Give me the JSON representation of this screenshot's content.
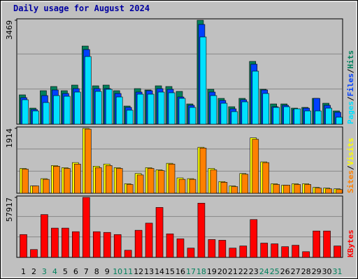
{
  "chart_data": [
    {
      "type": "bar",
      "title": "Daily usage for August 2024",
      "ylim": [
        0,
        3469
      ],
      "yticks": [
        3469
      ],
      "legend_separator": "/",
      "series": [
        {
          "name": "Hits",
          "color": "#00805c",
          "values": [
            978,
            535,
            1117,
            1257,
            1117,
            1304,
            2607,
            1280,
            1304,
            1117,
            605,
            1187,
            1141,
            1280,
            1257,
            1094,
            675,
            3469,
            1164,
            861,
            582,
            861,
            2095,
            1164,
            675,
            675,
            535,
            559,
            861,
            698,
            442
          ]
        },
        {
          "name": "Files",
          "color": "#0040ff",
          "values": [
            885,
            489,
            954,
            1141,
            1024,
            1187,
            2491,
            1187,
            1187,
            1024,
            559,
            1071,
            1117,
            1187,
            1164,
            908,
            629,
            3329,
            1071,
            792,
            512,
            815,
            2002,
            1141,
            582,
            629,
            489,
            535,
            861,
            629,
            396
          ]
        },
        {
          "name": "Pages",
          "color": "#00e0ff",
          "values": [
            815,
            442,
            722,
            954,
            931,
            1071,
            2258,
            1094,
            1164,
            908,
            466,
            1001,
            1001,
            1071,
            1048,
            861,
            559,
            2910,
            954,
            698,
            419,
            745,
            1769,
            1024,
            559,
            582,
            512,
            442,
            442,
            535,
            233
          ]
        }
      ]
    },
    {
      "type": "bar",
      "ylim": [
        0,
        1914
      ],
      "yticks": [
        1914
      ],
      "legend_separator": "/",
      "series": [
        {
          "name": "Visits",
          "color": "#ffff00",
          "values": [
            731,
            215,
            430,
            817,
            753,
            903,
            1914,
            796,
            860,
            753,
            280,
            581,
            753,
            688,
            882,
            452,
            430,
            1355,
            731,
            344,
            215,
            581,
            1634,
            925,
            280,
            237,
            280,
            280,
            172,
            151,
            129
          ]
        },
        {
          "name": "Sites",
          "color": "#ff8000",
          "values": [
            710,
            215,
            409,
            796,
            731,
            860,
            1892,
            753,
            817,
            731,
            258,
            538,
            731,
            667,
            860,
            409,
            409,
            1333,
            688,
            323,
            194,
            559,
            1591,
            903,
            258,
            237,
            258,
            258,
            151,
            129,
            108
          ]
        }
      ]
    },
    {
      "type": "bar",
      "ylim": [
        0,
        57917
      ],
      "yticks": [
        57917
      ],
      "categories": [
        "1",
        "2",
        "3",
        "4",
        "5",
        "6",
        "7",
        "8",
        "9",
        "10",
        "11",
        "12",
        "13",
        "14",
        "15",
        "16",
        "17",
        "18",
        "19",
        "20",
        "21",
        "22",
        "23",
        "24",
        "25",
        "26",
        "27",
        "28",
        "29",
        "30",
        "31"
      ],
      "category_colors": [
        "#000000",
        "#000000",
        "#00805c",
        "#00805c",
        "#000000",
        "#000000",
        "#000000",
        "#000000",
        "#000000",
        "#00805c",
        "#00805c",
        "#000000",
        "#000000",
        "#000000",
        "#000000",
        "#000000",
        "#00805c",
        "#00805c",
        "#000000",
        "#000000",
        "#000000",
        "#000000",
        "#000000",
        "#00805c",
        "#00805c",
        "#000000",
        "#000000",
        "#000000",
        "#000000",
        "#000000",
        "#00805c"
      ],
      "series": [
        {
          "name": "KBytes",
          "color": "#ff0000",
          "values": [
            22048,
            7579,
            41340,
            28249,
            28249,
            24804,
            57917,
            24804,
            24115,
            22048,
            6890,
            26182,
            33072,
            48230,
            22737,
            17914,
            8957,
            52364,
            17225,
            16536,
            8957,
            11024,
            36517,
            13780,
            13091,
            10335,
            11713,
            5512,
            25493,
            25493,
            11024
          ]
        }
      ]
    }
  ]
}
